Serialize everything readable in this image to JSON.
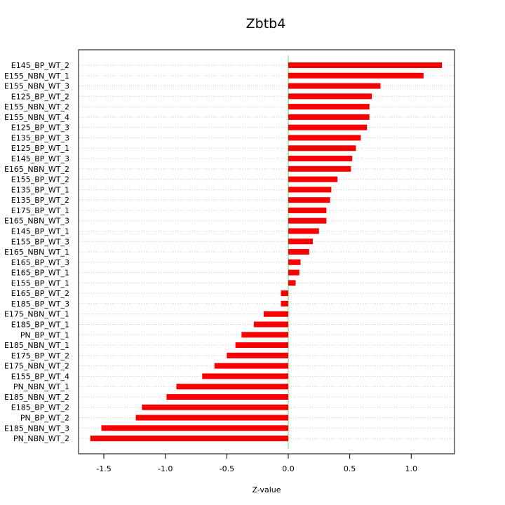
{
  "chart_data": {
    "type": "bar",
    "orientation": "horizontal",
    "title": "Zbtb4",
    "xlabel": "Z-value",
    "ylabel": "",
    "xlim": [
      -1.7,
      1.35
    ],
    "xticks": [
      -1.5,
      -1.0,
      -0.5,
      0.0,
      0.5,
      1.0
    ],
    "xtick_labels": [
      "-1.5",
      "-1.0",
      "-0.5",
      "0.0",
      "0.5",
      "1.0"
    ],
    "grid": "horizontal dotted lines at each category",
    "zero_line_color": "#66dd66",
    "bar_color": "#ff0000",
    "bar_hatch_color": "#cc0000",
    "categories": [
      "E145_BP_WT_2",
      "E155_NBN_WT_1",
      "E155_NBN_WT_3",
      "E125_BP_WT_2",
      "E155_NBN_WT_2",
      "E155_NBN_WT_4",
      "E125_BP_WT_3",
      "E135_BP_WT_3",
      "E125_BP_WT_1",
      "E145_BP_WT_3",
      "E165_NBN_WT_2",
      "E155_BP_WT_2",
      "E135_BP_WT_1",
      "E135_BP_WT_2",
      "E175_BP_WT_1",
      "E165_NBN_WT_3",
      "E145_BP_WT_1",
      "E155_BP_WT_3",
      "E165_NBN_WT_1",
      "E165_BP_WT_3",
      "E165_BP_WT_1",
      "E155_BP_WT_1",
      "E165_BP_WT_2",
      "E185_BP_WT_3",
      "E175_NBN_WT_1",
      "E185_BP_WT_1",
      "PN_BP_WT_1",
      "E185_NBN_WT_1",
      "E175_BP_WT_2",
      "E175_NBN_WT_2",
      "E155_BP_WT_4",
      "PN_NBN_WT_1",
      "E185_NBN_WT_2",
      "E185_BP_WT_2",
      "PN_BP_WT_2",
      "E185_NBN_WT_3",
      "PN_NBN_WT_2"
    ],
    "values": [
      1.25,
      1.1,
      0.75,
      0.68,
      0.66,
      0.66,
      0.64,
      0.59,
      0.55,
      0.52,
      0.51,
      0.4,
      0.35,
      0.34,
      0.31,
      0.31,
      0.25,
      0.2,
      0.17,
      0.1,
      0.09,
      0.06,
      -0.06,
      -0.06,
      -0.2,
      -0.28,
      -0.38,
      -0.43,
      -0.5,
      -0.6,
      -0.7,
      -0.91,
      -0.99,
      -1.19,
      -1.24,
      -1.52,
      -1.61
    ]
  }
}
